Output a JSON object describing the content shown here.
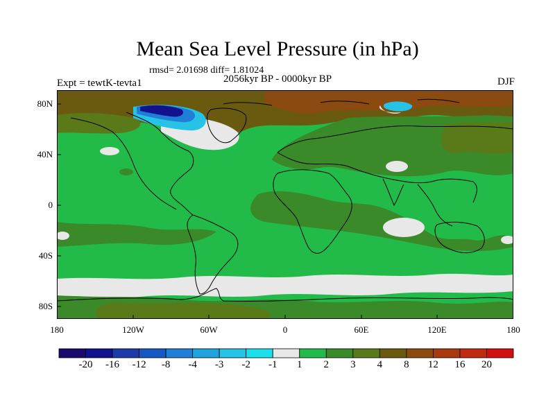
{
  "title": "Mean Sea Level Pressure (in hPa)",
  "stats": "rmsd= 2.01698 diff= 1.81024",
  "period": "2056kyr BP - 0000kyr BP",
  "experiment": "Expt = tewtK-tevta1",
  "season": "DJF",
  "lat_labels": [
    "80N",
    "40N",
    "0",
    "40S",
    "80S"
  ],
  "lon_labels": [
    "180",
    "120W",
    "60W",
    "0",
    "60E",
    "120E",
    "180"
  ],
  "colorbar": {
    "labels": [
      "-20",
      "-16",
      "-12",
      "-8",
      "-4",
      "-3",
      "-2",
      "-1",
      "1",
      "2",
      "3",
      "4",
      "8",
      "12",
      "16",
      "20"
    ],
    "colors": [
      "#1a0a6e",
      "#12128f",
      "#1b3ba8",
      "#1658c4",
      "#1f7fd6",
      "#1ea3dc",
      "#26c3e6",
      "#19e0e8",
      "#e8e8e8",
      "#22bb4a",
      "#3a8a2a",
      "#5a7a1a",
      "#6a5a10",
      "#8a4a10",
      "#a83a10",
      "#c02a10",
      "#d01010"
    ]
  },
  "colors": {
    "ocean_land_base": "#22bb4a",
    "plus3": "#3a8a2a",
    "plus4": "#5a7a1a",
    "plus8": "#6a5a10",
    "plus12": "#8a4a10",
    "near_zero": "#e8e8e8",
    "minus_strong": "#12128f",
    "minus_mid": "#1f7fd6",
    "minus_light": "#26c3e6"
  }
}
